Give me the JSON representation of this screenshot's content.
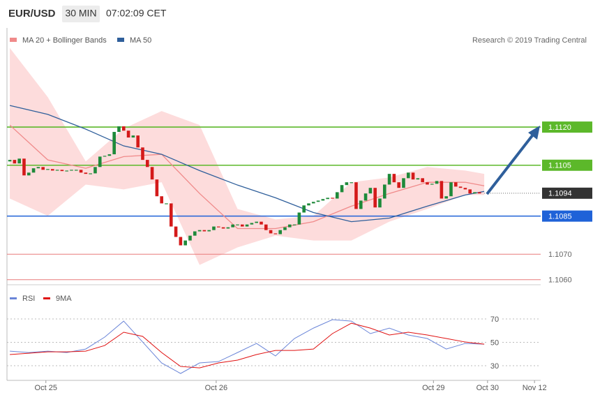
{
  "header": {
    "symbol": "EUR/USD",
    "interval": "30 MIN",
    "time": "07:02:09 CET",
    "attribution": "Research © 2019 Trading Central"
  },
  "chart_data": [
    {
      "type": "candlestick",
      "xlim": [
        -0.6,
        111.9
      ],
      "ylim": [
        1.1058,
        1.1159
      ],
      "candles": {
        "up_color": "#1e8a3a",
        "down_color": "#d41a1a",
        "values": [
          1.11065,
          1.11071,
          1.11057,
          1.11076,
          1.1101,
          1.11021,
          1.11038,
          1.11043,
          1.11032,
          1.11035,
          1.11029,
          1.11032,
          1.11027,
          1.11029,
          1.11032,
          1.11032,
          1.11021,
          1.11016,
          1.11018,
          1.11043,
          1.11084,
          1.11087,
          1.11093,
          1.11181,
          1.11203,
          1.11186,
          1.11159,
          1.11167,
          1.1112,
          1.11071,
          1.11043,
          1.10994,
          1.10928,
          1.109,
          1.109,
          1.10809,
          1.10768,
          1.10735,
          1.10754,
          1.10773,
          1.1079,
          1.10795,
          1.1079,
          1.10795,
          1.10809,
          1.10806,
          1.10801,
          1.10806,
          1.10817,
          1.10817,
          1.10809,
          1.10817,
          1.10823,
          1.10828,
          1.10817,
          1.10795,
          1.10782,
          1.10779,
          1.10795,
          1.10806,
          1.10817,
          1.10817,
          1.10864,
          1.10892,
          1.109,
          1.10906,
          1.10911,
          1.10917,
          1.10922,
          1.10919,
          1.10944,
          1.10972,
          1.10983,
          1.10983,
          1.10878,
          1.10911,
          1.10939,
          1.10961,
          1.10884,
          1.10919,
          1.10974,
          1.11016,
          1.10983,
          1.10961,
          1.10999,
          1.11021,
          1.10994,
          1.10999,
          1.10983,
          1.10974,
          1.10977,
          1.10988,
          1.10919,
          1.10928,
          1.10983,
          1.10966,
          1.10961,
          1.10955,
          1.10939,
          1.10944,
          1.10939
        ]
      },
      "series": [
        {
          "name": "MA 20 + Bollinger Bands",
          "color": "#f08a8a",
          "band_color": "#fddcdc",
          "x": [
            0,
            8,
            16,
            24,
            32,
            40,
            48,
            56,
            64,
            72,
            80,
            88,
            96,
            100
          ],
          "values": [
            1.11208,
            1.11071,
            1.11038,
            1.11084,
            1.11093,
            1.10939,
            1.10801,
            1.10801,
            1.10828,
            1.10889,
            1.10939,
            1.10983,
            1.10983,
            1.10969
          ],
          "upper": [
            1.11511,
            1.11318,
            1.11065,
            1.11194,
            1.11263,
            1.11208,
            1.10878,
            1.10837,
            1.10851,
            1.10983,
            1.11002,
            1.11043,
            1.11029,
            1.11016
          ],
          "lower": [
            1.10919,
            1.10851,
            1.10974,
            1.10955,
            1.10983,
            1.10658,
            1.10727,
            1.10773,
            1.10754,
            1.10754,
            1.10828,
            1.10878,
            1.10933,
            1.10933
          ]
        },
        {
          "name": "MA 50",
          "color": "#2f5f9b",
          "x": [
            0,
            8,
            16,
            24,
            32,
            40,
            48,
            56,
            64,
            72,
            80,
            88,
            96,
            100
          ],
          "values": [
            1.11285,
            1.1125,
            1.11192,
            1.11126,
            1.11093,
            1.11029,
            1.10972,
            1.10922,
            1.10864,
            1.10828,
            1.10842,
            1.10889,
            1.10933,
            1.10947
          ]
        }
      ],
      "levels": [
        {
          "value": 1.112,
          "label": "1.1120",
          "color": "#5cb82a",
          "style": "solid",
          "label_box": true
        },
        {
          "value": 1.1105,
          "label": "1.1105",
          "color": "#5cb82a",
          "style": "solid",
          "label_box": true
        },
        {
          "value": 1.1094,
          "label": "1.1094",
          "color": "#333333",
          "style": "dotted",
          "label_box": true
        },
        {
          "value": 1.1085,
          "label": "1.1085",
          "color": "#1f62d8",
          "style": "solid",
          "label_box": true
        },
        {
          "value": 1.107,
          "label": "1.1070",
          "color": "#e87a7a",
          "style": "thin",
          "label_box": false
        },
        {
          "value": 1.106,
          "label": "1.1060",
          "color": "#e87a7a",
          "style": "thin",
          "label_box": false
        }
      ]
    },
    {
      "type": "line",
      "xlim": [
        -0.6,
        111.9
      ],
      "ylim": [
        17.5,
        96.3
      ],
      "yticks": [
        30,
        50,
        70
      ],
      "grid": true,
      "xticks": [
        {
          "value": 7.6,
          "label": "Oct 25"
        },
        {
          "value": 43.5,
          "label": "Oct 26"
        },
        {
          "value": 89.3,
          "label": "Oct 29"
        },
        {
          "value": 100.7,
          "label": "Oct 30"
        },
        {
          "value": 110.6,
          "label": "Nov 12"
        }
      ],
      "series": [
        {
          "name": "RSI",
          "color": "#6a85d8",
          "x": [
            0,
            4,
            8,
            12,
            16,
            20,
            24,
            28,
            32,
            36,
            40,
            44,
            48,
            52,
            56,
            60,
            64,
            68,
            72,
            76,
            80,
            84,
            88,
            92,
            96,
            100
          ],
          "values": [
            42.5,
            41.3,
            42.5,
            41.3,
            44.3,
            54.5,
            68.2,
            50.3,
            32.4,
            23.4,
            32.4,
            33.6,
            41.3,
            49.1,
            38.4,
            53.3,
            62.2,
            69.4,
            68.2,
            57.5,
            62.2,
            56.3,
            53.3,
            44.3,
            49.1,
            48.5
          ]
        },
        {
          "name": "9MA",
          "color": "#e01010",
          "x": [
            0,
            4,
            8,
            12,
            16,
            20,
            24,
            28,
            32,
            36,
            40,
            44,
            48,
            52,
            56,
            60,
            64,
            68,
            72,
            76,
            80,
            84,
            88,
            92,
            96,
            100
          ],
          "values": [
            39.6,
            40.7,
            41.9,
            41.9,
            42.5,
            47.3,
            58.7,
            55.1,
            41.3,
            29.4,
            28.2,
            32.4,
            34.8,
            39.6,
            43.1,
            43.1,
            44.3,
            57.5,
            66.4,
            62.2,
            56.3,
            58.7,
            56.3,
            53.3,
            50.3,
            48.5
          ]
        }
      ]
    }
  ]
}
